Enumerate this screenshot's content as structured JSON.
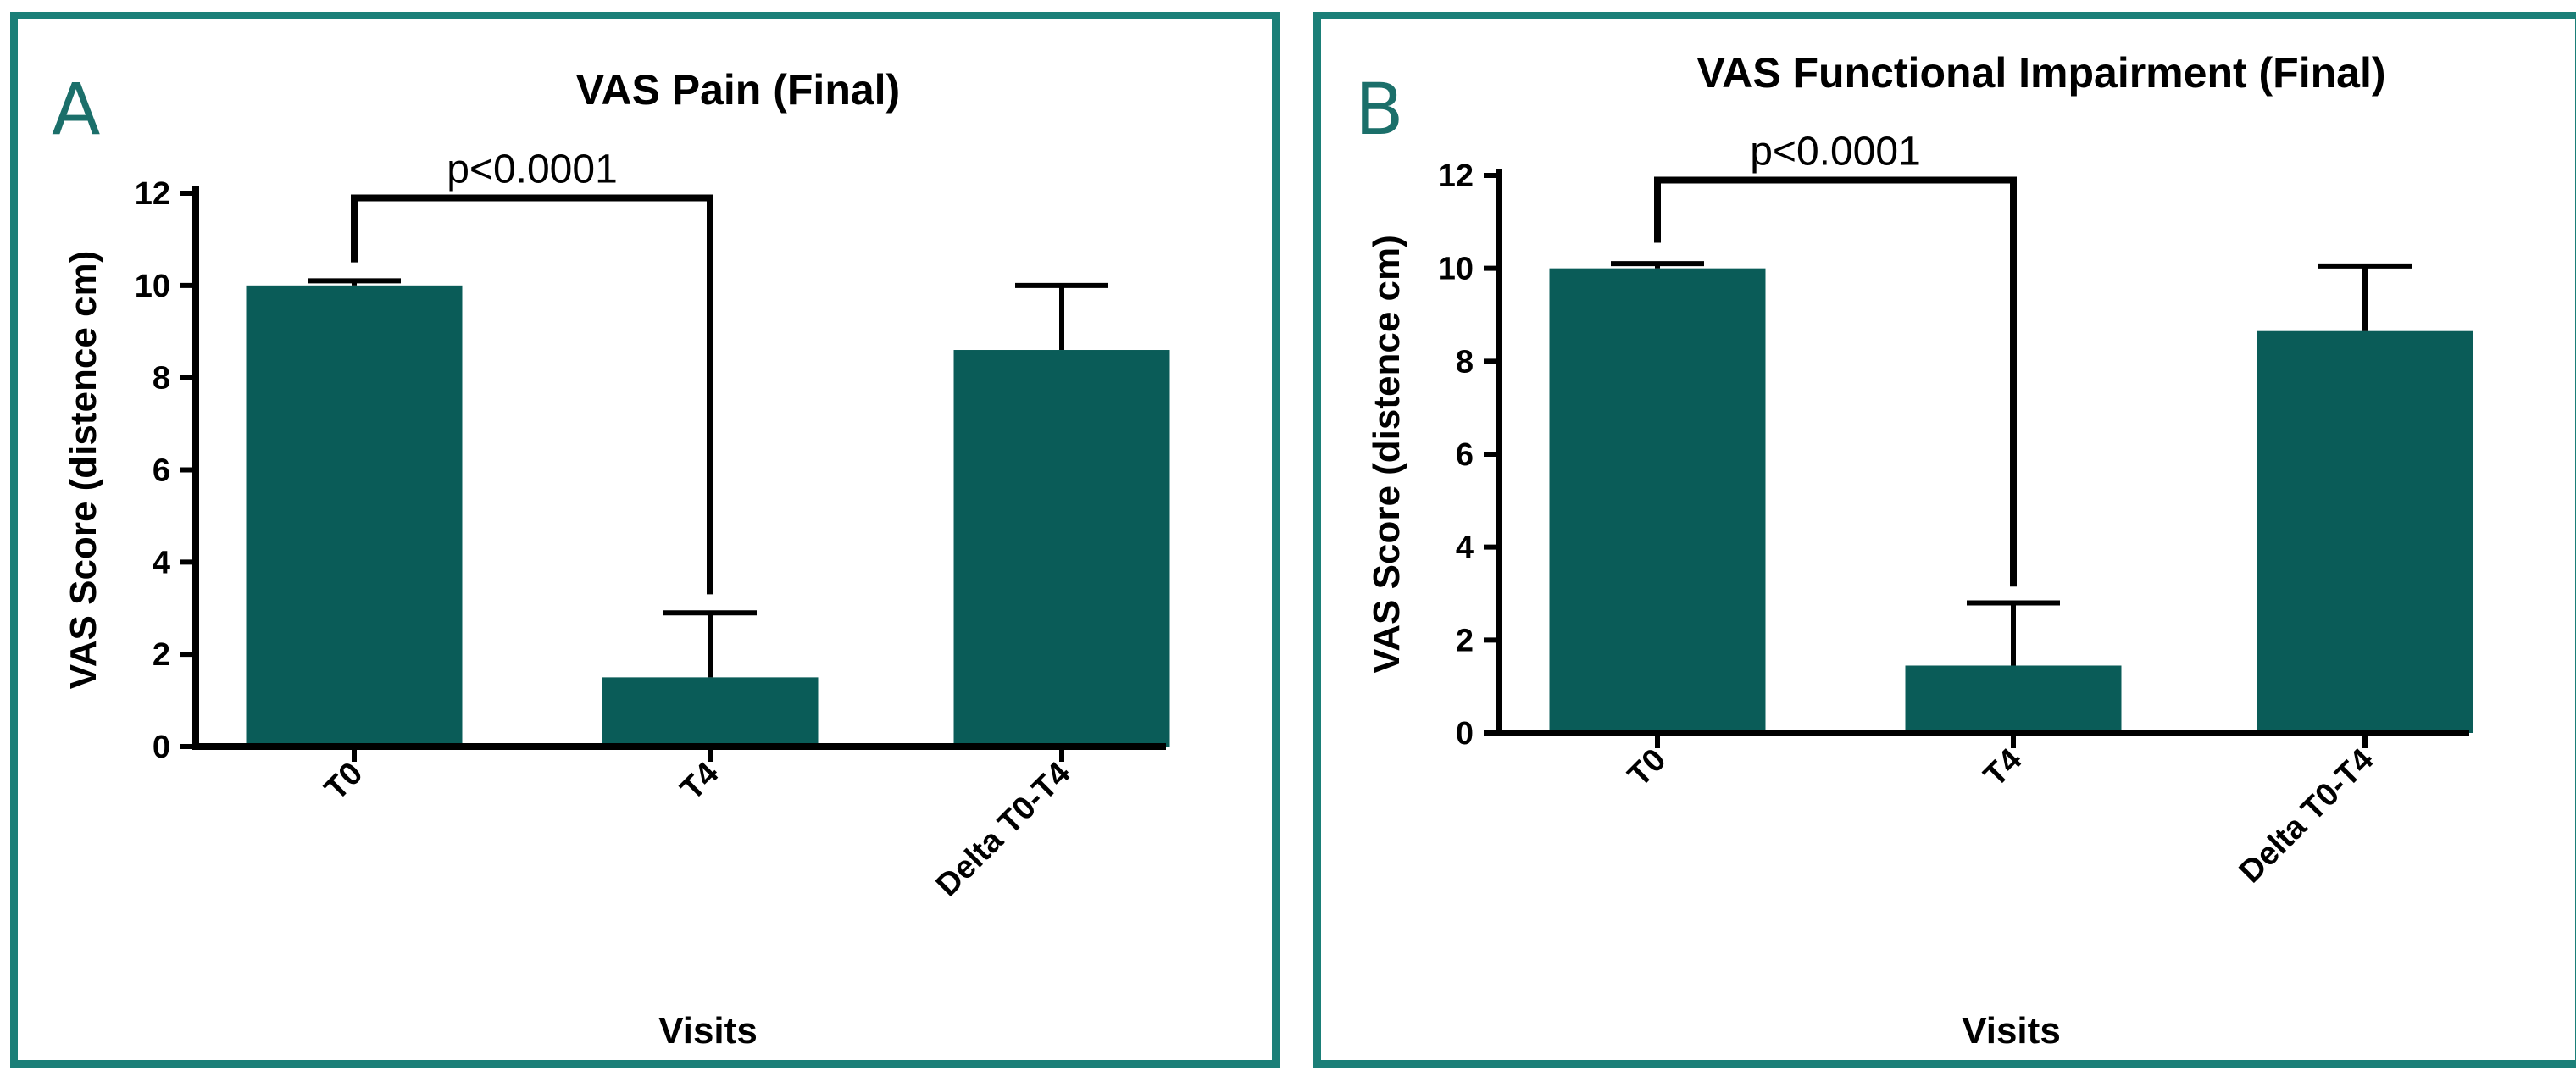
{
  "panels": [
    {
      "letter": "A",
      "chart_key": "A"
    },
    {
      "letter": "B",
      "chart_key": "B"
    }
  ],
  "colors": {
    "bar_fill": "#0a5c58",
    "frame": "#1b7f78",
    "letter": "#1b6f6a",
    "ink": "#000000"
  },
  "chart_data": [
    {
      "panel": "A",
      "type": "bar",
      "title": "VAS Pain (Final)",
      "xlabel": "Visits",
      "ylabel": "VAS Score (distence cm)",
      "categories": [
        "T0",
        "T4",
        "Delta T0-T4"
      ],
      "values": [
        10.0,
        1.5,
        8.6
      ],
      "error_upper": [
        0.1,
        1.4,
        1.4
      ],
      "ylim": [
        0,
        12
      ],
      "yticks": [
        0,
        2,
        4,
        6,
        8,
        10,
        12
      ],
      "ytick_labels": [
        "0",
        "2",
        "4",
        "6",
        "8",
        "10",
        "12"
      ],
      "annotation": {
        "text": "p<0.0001",
        "from_category": "T0",
        "to_category": "T4",
        "bracket_top": 11.9,
        "left_bottom": 10.5,
        "right_bottom": 3.3
      },
      "grid": false,
      "legend": "none"
    },
    {
      "panel": "B",
      "type": "bar",
      "title": "VAS Functional Impairment (Final)",
      "xlabel": "Visits",
      "ylabel": "VAS Score (distence cm)",
      "categories": [
        "T0",
        "T4",
        "Delta T0-T4"
      ],
      "values": [
        10.0,
        1.45,
        8.65
      ],
      "error_upper": [
        0.1,
        1.35,
        1.4
      ],
      "ylim": [
        0,
        12
      ],
      "yticks": [
        0,
        2,
        4,
        6,
        8,
        10,
        12
      ],
      "ytick_labels": [
        "0",
        "2",
        "4",
        "6",
        "8",
        "10",
        "12"
      ],
      "annotation": {
        "text": "p<0.0001",
        "from_category": "T0",
        "to_category": "T4",
        "bracket_top": 11.9,
        "left_bottom": 10.55,
        "right_bottom": 3.15
      },
      "grid": false,
      "legend": "none"
    }
  ]
}
